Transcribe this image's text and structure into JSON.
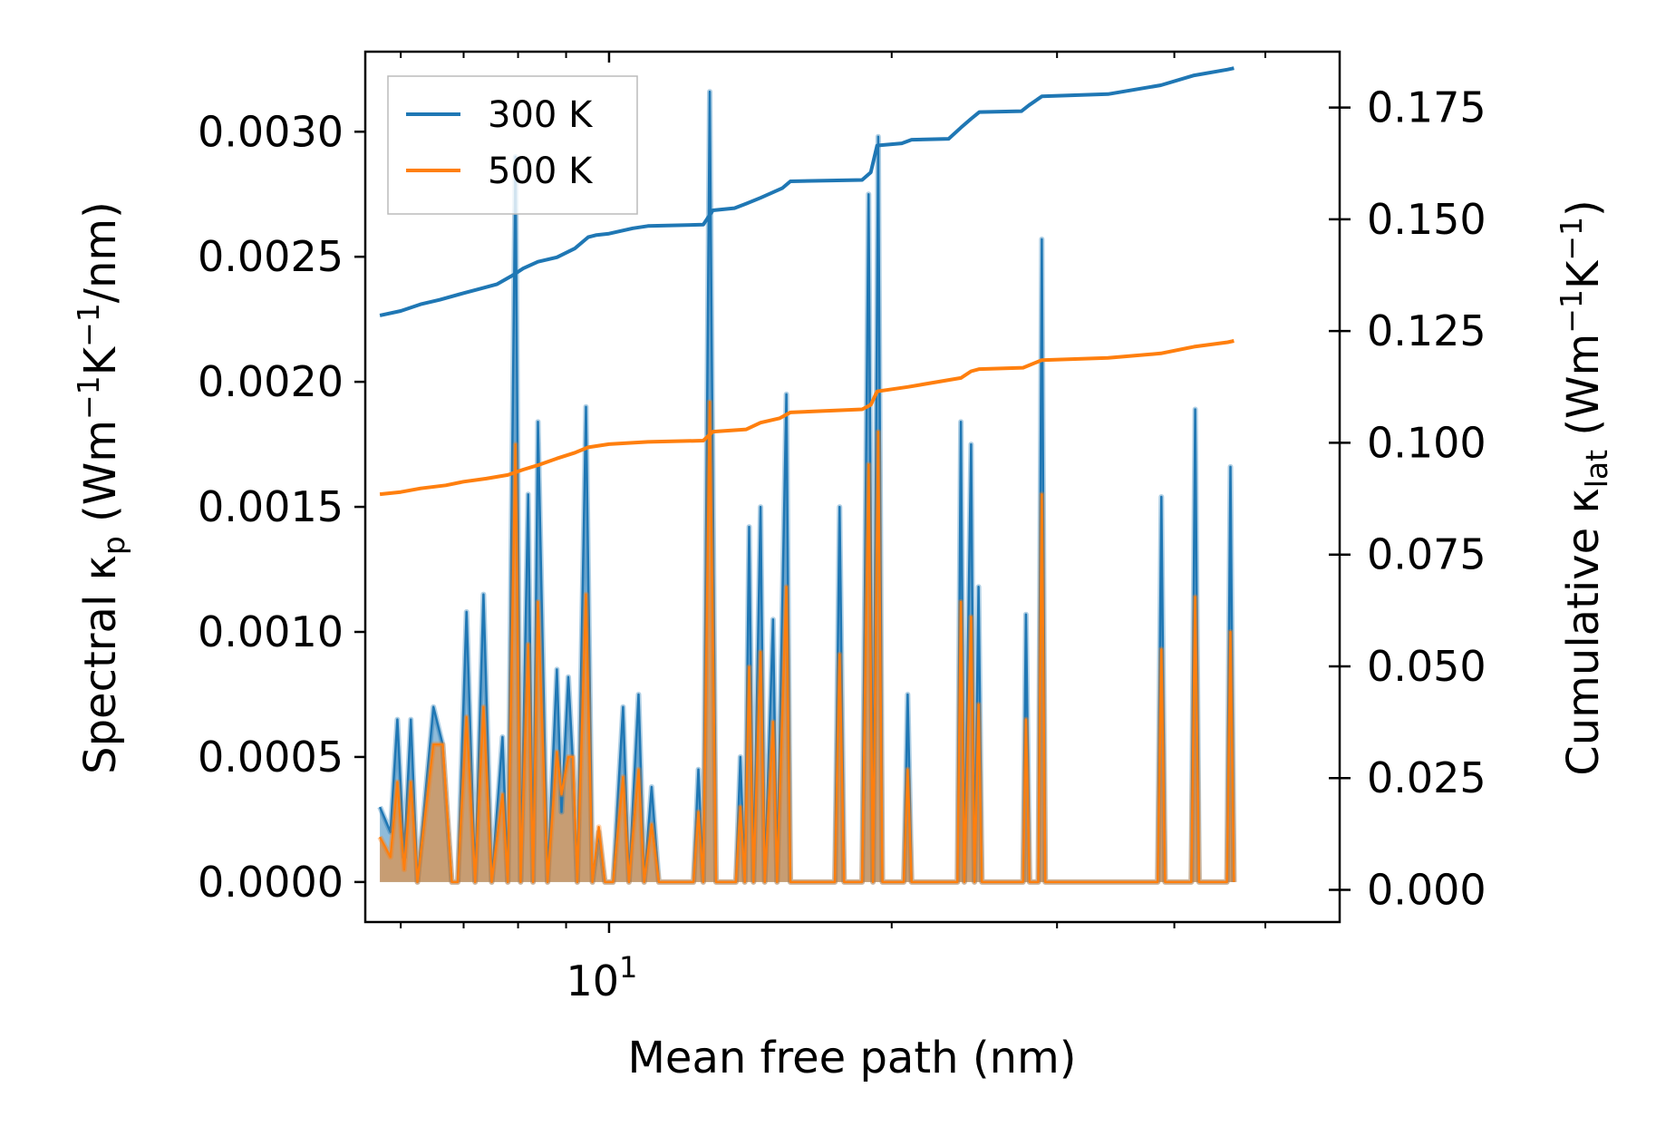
{
  "chart_data": {
    "type": "line",
    "xscale": "log",
    "xlabel": "Mean free path (nm)",
    "xlim": [
      5.5,
      60
    ],
    "x_ticks": [
      {
        "value": 10,
        "base": "10",
        "exp": "1"
      }
    ],
    "y_left": {
      "label_parts": [
        "Spectral κ",
        "p",
        " (Wm",
        "−1",
        "K",
        "−1",
        "/nm)"
      ],
      "lim": [
        -0.00016,
        0.00332
      ],
      "ticks": [
        0,
        0.0005,
        0.001,
        0.0015,
        0.002,
        0.0025,
        0.003
      ],
      "tick_labels": [
        "0.0000",
        "0.0005",
        "0.0010",
        "0.0015",
        "0.0020",
        "0.0025",
        "0.0030"
      ]
    },
    "y_right": {
      "label_parts": [
        "Cumulative κ",
        "lat",
        " (Wm",
        "−1",
        "K",
        "−1",
        ")"
      ],
      "lim": [
        -0.0072,
        0.1875
      ],
      "ticks": [
        0,
        0.025,
        0.05,
        0.075,
        0.1,
        0.125,
        0.15,
        0.175
      ],
      "tick_labels": [
        "0.000",
        "0.025",
        "0.050",
        "0.075",
        "0.100",
        "0.125",
        "0.150",
        "0.175"
      ]
    },
    "legend": {
      "position": "top-left",
      "entries": [
        {
          "label": "300 K",
          "color": "#1f77b4"
        },
        {
          "label": "500 K",
          "color": "#ff7f0e"
        }
      ]
    },
    "spectral_series": [
      {
        "name": "300 K",
        "color": "#1f77b4",
        "points": [
          [
            5.7,
            0.0003
          ],
          [
            5.85,
            0.0002
          ],
          [
            5.95,
            0.00065
          ],
          [
            6.05,
            0.0001
          ],
          [
            6.15,
            0.00065
          ],
          [
            6.25,
            0.0
          ],
          [
            6.5,
            0.0007
          ],
          [
            6.65,
            0.00055
          ],
          [
            6.8,
            0.0
          ],
          [
            6.9,
            0.0
          ],
          [
            7.05,
            0.00108
          ],
          [
            7.2,
            0.0
          ],
          [
            7.35,
            0.00115
          ],
          [
            7.5,
            0.0
          ],
          [
            7.7,
            0.00058
          ],
          [
            7.8,
            0.0
          ],
          [
            7.95,
            0.0029
          ],
          [
            8.05,
            0.0
          ],
          [
            8.2,
            0.00155
          ],
          [
            8.3,
            0.0
          ],
          [
            8.4,
            0.00184
          ],
          [
            8.6,
            0.0
          ],
          [
            8.8,
            0.00085
          ],
          [
            8.9,
            0.00028
          ],
          [
            9.05,
            0.00082
          ],
          [
            9.15,
            0.00048
          ],
          [
            9.25,
            0.0
          ],
          [
            9.45,
            0.0019
          ],
          [
            9.6,
            0.0
          ],
          [
            9.75,
            0.0002
          ],
          [
            9.9,
            0.0
          ],
          [
            10.1,
            0.0
          ],
          [
            10.35,
            0.0007
          ],
          [
            10.5,
            0.0
          ],
          [
            10.75,
            0.00075
          ],
          [
            10.9,
            0.0
          ],
          [
            11.1,
            0.00038
          ],
          [
            11.3,
            0.0
          ],
          [
            12.3,
            0.0
          ],
          [
            12.45,
            0.00045
          ],
          [
            12.6,
            0.0
          ],
          [
            12.8,
            0.00316
          ],
          [
            13.0,
            0.0
          ],
          [
            13.65,
            0.0
          ],
          [
            13.8,
            0.0005
          ],
          [
            13.95,
            0.0
          ],
          [
            14.1,
            0.00142
          ],
          [
            14.25,
            0.0
          ],
          [
            14.5,
            0.0015
          ],
          [
            14.65,
            0.0
          ],
          [
            14.95,
            0.00105
          ],
          [
            15.1,
            0.0
          ],
          [
            15.45,
            0.00195
          ],
          [
            15.6,
            0.0
          ],
          [
            17.4,
            0.0
          ],
          [
            17.6,
            0.0015
          ],
          [
            17.8,
            0.0
          ],
          [
            18.6,
            0.0
          ],
          [
            18.9,
            0.00275
          ],
          [
            19.1,
            0.0
          ],
          [
            19.35,
            0.00298
          ],
          [
            19.55,
            0.0
          ],
          [
            20.6,
            0.0
          ],
          [
            20.8,
            0.00075
          ],
          [
            21.0,
            0.0
          ],
          [
            23.5,
            0.0
          ],
          [
            23.7,
            0.00184
          ],
          [
            23.9,
            0.0
          ],
          [
            24.3,
            0.00175
          ],
          [
            24.5,
            0.0
          ],
          [
            24.75,
            0.00118
          ],
          [
            24.95,
            0.0
          ],
          [
            27.6,
            0.0
          ],
          [
            27.8,
            0.00107
          ],
          [
            28.05,
            0.0
          ],
          [
            28.65,
            0.0
          ],
          [
            28.9,
            0.00257
          ],
          [
            29.15,
            0.0
          ],
          [
            38.4,
            0.0
          ],
          [
            38.75,
            0.00154
          ],
          [
            39.1,
            0.0
          ],
          [
            41.7,
            0.0
          ],
          [
            42.1,
            0.00189
          ],
          [
            42.5,
            0.0
          ],
          [
            45.5,
            0.0
          ],
          [
            45.9,
            0.00166
          ],
          [
            46.3,
            0.0
          ]
        ]
      },
      {
        "name": "500 K",
        "color": "#ff7f0e",
        "points": [
          [
            5.7,
            0.00018
          ],
          [
            5.85,
            0.0001
          ],
          [
            5.95,
            0.0004
          ],
          [
            6.05,
            5e-05
          ],
          [
            6.15,
            0.0004
          ],
          [
            6.25,
            0.0
          ],
          [
            6.5,
            0.00055
          ],
          [
            6.65,
            0.00055
          ],
          [
            6.8,
            0.0
          ],
          [
            6.9,
            0.0
          ],
          [
            7.05,
            0.00066
          ],
          [
            7.2,
            0.0
          ],
          [
            7.35,
            0.0007
          ],
          [
            7.5,
            0.0
          ],
          [
            7.7,
            0.00035
          ],
          [
            7.8,
            0.0
          ],
          [
            7.95,
            0.00175
          ],
          [
            8.05,
            0.0
          ],
          [
            8.2,
            0.00095
          ],
          [
            8.3,
            0.0
          ],
          [
            8.4,
            0.00112
          ],
          [
            8.6,
            0.0
          ],
          [
            8.8,
            0.00052
          ],
          [
            8.9,
            0.00035
          ],
          [
            9.05,
            0.0005
          ],
          [
            9.15,
            0.0005
          ],
          [
            9.25,
            0.0
          ],
          [
            9.45,
            0.00115
          ],
          [
            9.6,
            0.0
          ],
          [
            9.75,
            0.00022
          ],
          [
            9.9,
            0.0
          ],
          [
            10.1,
            0.0
          ],
          [
            10.35,
            0.00042
          ],
          [
            10.5,
            0.0
          ],
          [
            10.75,
            0.00045
          ],
          [
            10.9,
            0.0
          ],
          [
            11.1,
            0.00023
          ],
          [
            11.3,
            0.0
          ],
          [
            12.3,
            0.0
          ],
          [
            12.45,
            0.00028
          ],
          [
            12.6,
            0.0
          ],
          [
            12.8,
            0.00192
          ],
          [
            13.0,
            0.0
          ],
          [
            13.65,
            0.0
          ],
          [
            13.8,
            0.0003
          ],
          [
            13.95,
            0.0
          ],
          [
            14.1,
            0.00086
          ],
          [
            14.25,
            0.0
          ],
          [
            14.5,
            0.00092
          ],
          [
            14.65,
            0.0
          ],
          [
            14.95,
            0.00064
          ],
          [
            15.1,
            0.0
          ],
          [
            15.45,
            0.00118
          ],
          [
            15.6,
            0.0
          ],
          [
            17.4,
            0.0
          ],
          [
            17.6,
            0.00091
          ],
          [
            17.8,
            0.0
          ],
          [
            18.6,
            0.0
          ],
          [
            18.9,
            0.00167
          ],
          [
            19.1,
            0.0
          ],
          [
            19.35,
            0.0018
          ],
          [
            19.55,
            0.0
          ],
          [
            20.6,
            0.0
          ],
          [
            20.8,
            0.00045
          ],
          [
            21.0,
            0.0
          ],
          [
            23.5,
            0.0
          ],
          [
            23.7,
            0.00112
          ],
          [
            23.9,
            0.0
          ],
          [
            24.3,
            0.00106
          ],
          [
            24.5,
            0.0
          ],
          [
            24.75,
            0.00071
          ],
          [
            24.95,
            0.0
          ],
          [
            27.6,
            0.0
          ],
          [
            27.8,
            0.00065
          ],
          [
            28.05,
            0.0
          ],
          [
            28.65,
            0.0
          ],
          [
            28.9,
            0.00155
          ],
          [
            29.15,
            0.0
          ],
          [
            38.4,
            0.0
          ],
          [
            38.75,
            0.00093
          ],
          [
            39.1,
            0.0
          ],
          [
            41.7,
            0.0
          ],
          [
            42.1,
            0.00114
          ],
          [
            42.5,
            0.0
          ],
          [
            45.5,
            0.0
          ],
          [
            45.9,
            0.001
          ],
          [
            46.3,
            0.0
          ]
        ]
      }
    ],
    "cumulative_series": [
      {
        "name": "300 K",
        "color": "#1f77b4",
        "points": [
          [
            5.7,
            0.1285
          ],
          [
            6.0,
            0.1295
          ],
          [
            6.3,
            0.131
          ],
          [
            6.6,
            0.132
          ],
          [
            7.0,
            0.1335
          ],
          [
            7.3,
            0.1345
          ],
          [
            7.6,
            0.1355
          ],
          [
            7.9,
            0.1375
          ],
          [
            8.1,
            0.139
          ],
          [
            8.4,
            0.1405
          ],
          [
            8.8,
            0.1415
          ],
          [
            9.2,
            0.1435
          ],
          [
            9.5,
            0.146
          ],
          [
            9.7,
            0.1465
          ],
          [
            10.0,
            0.1468
          ],
          [
            10.6,
            0.148
          ],
          [
            11.0,
            0.1485
          ],
          [
            12.6,
            0.1488
          ],
          [
            12.9,
            0.152
          ],
          [
            13.6,
            0.1525
          ],
          [
            14.0,
            0.1535
          ],
          [
            14.5,
            0.1548
          ],
          [
            15.3,
            0.157
          ],
          [
            15.6,
            0.1585
          ],
          [
            18.6,
            0.1588
          ],
          [
            19.0,
            0.1605
          ],
          [
            19.3,
            0.1665
          ],
          [
            20.5,
            0.167
          ],
          [
            21.0,
            0.1678
          ],
          [
            23.0,
            0.168
          ],
          [
            23.7,
            0.1705
          ],
          [
            24.3,
            0.1725
          ],
          [
            24.8,
            0.174
          ],
          [
            27.5,
            0.1742
          ],
          [
            28.0,
            0.1755
          ],
          [
            28.9,
            0.1775
          ],
          [
            34.0,
            0.178
          ],
          [
            38.7,
            0.18
          ],
          [
            42.0,
            0.1822
          ],
          [
            45.6,
            0.1835
          ],
          [
            46.3,
            0.1838
          ]
        ]
      },
      {
        "name": "500 K",
        "color": "#ff7f0e",
        "points": [
          [
            5.7,
            0.0885
          ],
          [
            6.0,
            0.089
          ],
          [
            6.3,
            0.0898
          ],
          [
            6.7,
            0.0905
          ],
          [
            7.0,
            0.0913
          ],
          [
            7.4,
            0.092
          ],
          [
            7.8,
            0.0928
          ],
          [
            8.1,
            0.094
          ],
          [
            8.4,
            0.095
          ],
          [
            8.8,
            0.0965
          ],
          [
            9.2,
            0.0978
          ],
          [
            9.5,
            0.099
          ],
          [
            10.0,
            0.0997
          ],
          [
            11.0,
            0.1002
          ],
          [
            12.6,
            0.1005
          ],
          [
            12.9,
            0.1025
          ],
          [
            14.0,
            0.103
          ],
          [
            14.5,
            0.1045
          ],
          [
            15.2,
            0.1055
          ],
          [
            15.6,
            0.1068
          ],
          [
            18.6,
            0.1075
          ],
          [
            19.0,
            0.1085
          ],
          [
            19.3,
            0.1115
          ],
          [
            20.8,
            0.1125
          ],
          [
            23.7,
            0.1145
          ],
          [
            24.3,
            0.116
          ],
          [
            24.8,
            0.1165
          ],
          [
            27.6,
            0.1168
          ],
          [
            28.9,
            0.1185
          ],
          [
            34.0,
            0.119
          ],
          [
            38.7,
            0.12
          ],
          [
            42.0,
            0.1215
          ],
          [
            45.6,
            0.1225
          ],
          [
            46.3,
            0.1228
          ]
        ]
      }
    ]
  }
}
